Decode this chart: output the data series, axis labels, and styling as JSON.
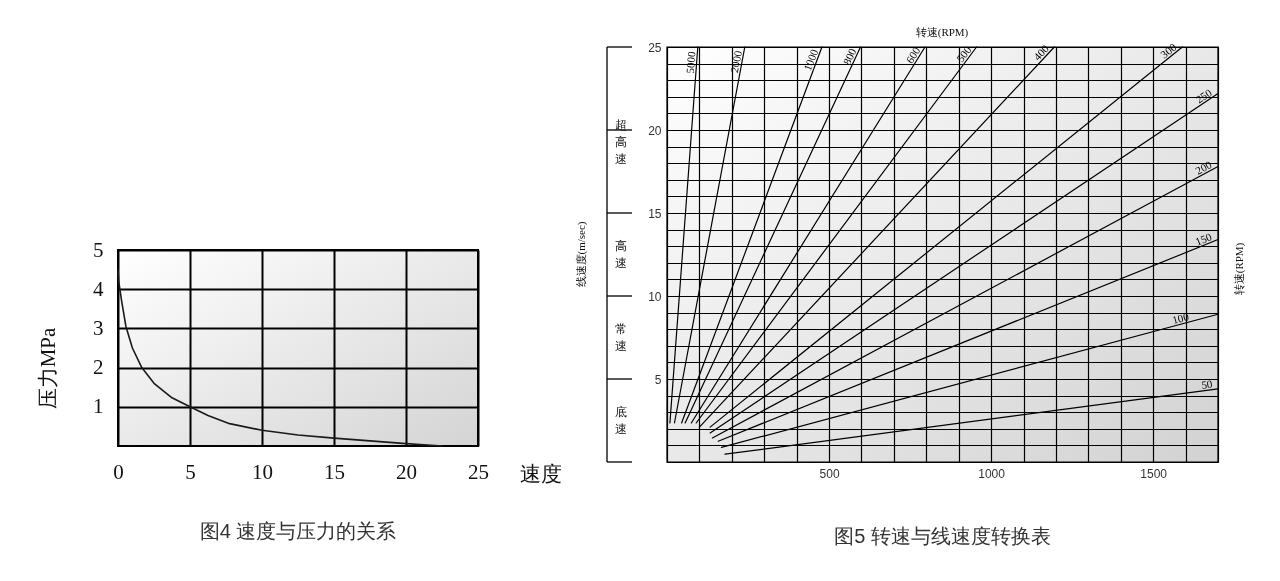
{
  "chart_data": [
    {
      "type": "line",
      "title": "图4 速度与压力的关系",
      "xlabel": "速度",
      "ylabel": "压力MPa",
      "x": [
        0,
        0.05,
        0.25,
        0.55,
        1,
        1.65,
        2.5,
        3.75,
        5,
        6.25,
        7.75,
        10,
        12.5,
        15,
        17.5,
        20,
        22.5
      ],
      "values": [
        4.5,
        4.2,
        3.7,
        3.05,
        2.5,
        2.0,
        1.6,
        1.23,
        1.0,
        0.78,
        0.57,
        0.4,
        0.28,
        0.2,
        0.13,
        0.06,
        0.0
      ],
      "color": "#1a1a1a",
      "xlim": [
        0,
        25
      ],
      "ylim": [
        0,
        5
      ],
      "xticks": [
        0,
        5,
        10,
        15,
        20,
        25
      ],
      "yticks": [
        1,
        2,
        3,
        4,
        5
      ],
      "grid": true
    },
    {
      "type": "line",
      "title": "图5 转速与线速度转换表",
      "ylabel": "线速度(m/sec)",
      "annotations": [
        "转速(RPM)",
        "转速(RPM)",
        "超高速",
        "高速",
        "常速",
        "底速"
      ],
      "series": [
        {
          "name": "5000",
          "color": "#000000",
          "x": [
            9,
            95
          ],
          "values": [
            2.35,
            25
          ]
        },
        {
          "name": "2000",
          "color": "#000000",
          "x": [
            23,
            240
          ],
          "values": [
            2.35,
            25
          ]
        },
        {
          "name": "1000",
          "color": "#000000",
          "x": [
            45,
            478
          ],
          "values": [
            2.35,
            25
          ]
        },
        {
          "name": "800",
          "color": "#000000",
          "x": [
            56,
            597
          ],
          "values": [
            2.35,
            25
          ]
        },
        {
          "name": "600",
          "color": "#000000",
          "x": [
            75,
            796
          ],
          "values": [
            2.35,
            25
          ]
        },
        {
          "name": "500",
          "color": "#000000",
          "x": [
            90,
            955
          ],
          "values": [
            2.35,
            25
          ]
        },
        {
          "name": "400",
          "color": "#000000",
          "x": [
            100,
            1195
          ],
          "values": [
            2.1,
            25
          ]
        },
        {
          "name": "300",
          "color": "#000000",
          "x": [
            133,
            1590
          ],
          "values": [
            2.1,
            25
          ]
        },
        {
          "name": "250",
          "color": "#000000",
          "x": [
            133,
            1700
          ],
          "values": [
            1.75,
            22.2
          ]
        },
        {
          "name": "200",
          "color": "#000000",
          "x": [
            140,
            1700
          ],
          "values": [
            1.45,
            17.8
          ]
        },
        {
          "name": "150",
          "color": "#000000",
          "x": [
            158,
            1700
          ],
          "values": [
            1.25,
            13.4
          ]
        },
        {
          "name": "100",
          "color": "#000000",
          "x": [
            168,
            1700
          ],
          "values": [
            0.88,
            8.9
          ]
        },
        {
          "name": "50",
          "color": "#000000",
          "x": [
            179,
            1700
          ],
          "values": [
            0.47,
            4.4
          ]
        }
      ],
      "xlim": [
        0,
        1700
      ],
      "ylim": [
        0,
        25
      ],
      "xticks": [
        {
          "value": 0,
          "label": null
        },
        {
          "value": 100,
          "label": null
        },
        {
          "value": 200,
          "label": null
        },
        {
          "value": 300,
          "label": null
        },
        {
          "value": 400,
          "label": null
        },
        500,
        {
          "value": 600,
          "label": null
        },
        {
          "value": 700,
          "label": null
        },
        {
          "value": 800,
          "label": null
        },
        {
          "value": 900,
          "label": null
        },
        1000,
        {
          "value": 1100,
          "label": null
        },
        {
          "value": 1200,
          "label": null
        },
        {
          "value": 1300,
          "label": null
        },
        {
          "value": 1400,
          "label": null
        },
        1500,
        {
          "value": 1600,
          "label": null
        },
        {
          "value": 1700,
          "label": null
        }
      ],
      "yticks": [
        {
          "value": 0,
          "label": null
        },
        {
          "value": 1,
          "label": null
        },
        {
          "value": 2,
          "label": null
        },
        {
          "value": 3,
          "label": null
        },
        {
          "value": 4,
          "label": null
        },
        5,
        {
          "value": 6,
          "label": null
        },
        {
          "value": 7,
          "label": null
        },
        {
          "value": 8,
          "label": null
        },
        {
          "value": 9,
          "label": null
        },
        10,
        {
          "value": 11,
          "label": null
        },
        {
          "value": 12,
          "label": null
        },
        {
          "value": 13,
          "label": null
        },
        {
          "value": 14,
          "label": null
        },
        15,
        {
          "value": 16,
          "label": null
        },
        {
          "value": 17,
          "label": null
        },
        {
          "value": 18,
          "label": null
        },
        {
          "value": 19,
          "label": null
        },
        20,
        {
          "value": 21,
          "label": null
        },
        {
          "value": 22,
          "label": null
        },
        {
          "value": 23,
          "label": null
        },
        {
          "value": 24,
          "label": null
        },
        25
      ],
      "grid": true
    }
  ]
}
